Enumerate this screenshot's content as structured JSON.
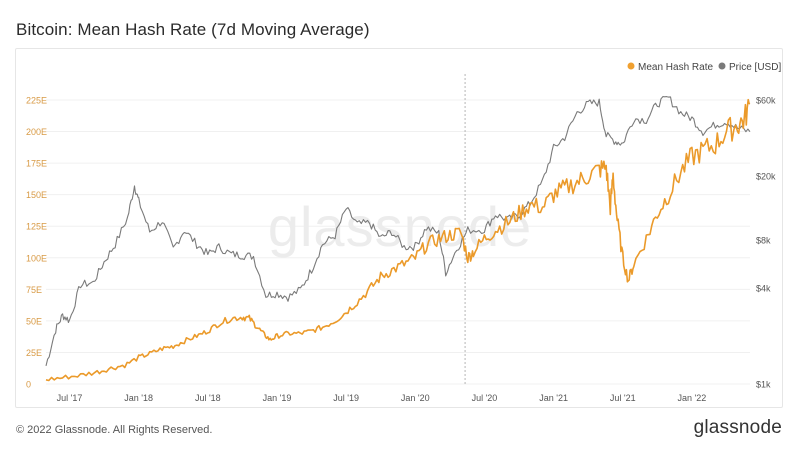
{
  "page": {
    "title": "Bitcoin: Mean Hash Rate (7d Moving Average)",
    "copyright": "© 2022 Glassnode. All Rights Reserved.",
    "brand": "glassnode",
    "watermark": "glassnode"
  },
  "colors": {
    "hash": "#f0a030",
    "hash_line": "#eb9a2a",
    "price": "#7a7a7a",
    "grid": "#f0f0f0",
    "axis_left": "#d89a45",
    "axis_right": "#555555"
  },
  "chart_data": {
    "type": "line",
    "title": "Bitcoin: Mean Hash Rate (7d Moving Average)",
    "legend": [
      "Mean Hash Rate",
      "Price [USD]"
    ],
    "legend_position": "top-right",
    "x_range": [
      2017.33,
      2022.42
    ],
    "x_ticks": [
      {
        "label": "Jul '17",
        "value": 2017.5
      },
      {
        "label": "Jan '18",
        "value": 2018.0
      },
      {
        "label": "Jul '18",
        "value": 2018.5
      },
      {
        "label": "Jan '19",
        "value": 2019.0
      },
      {
        "label": "Jul '19",
        "value": 2019.5
      },
      {
        "label": "Jan '20",
        "value": 2020.0
      },
      {
        "label": "Jul '20",
        "value": 2020.5
      },
      {
        "label": "Jan '21",
        "value": 2021.0
      },
      {
        "label": "Jul '21",
        "value": 2021.5
      },
      {
        "label": "Jan '22",
        "value": 2022.0
      }
    ],
    "y_left": {
      "label": "Mean Hash Rate",
      "range": [
        0,
        225
      ],
      "ticks": [
        "0",
        "25E",
        "50E",
        "75E",
        "100E",
        "125E",
        "150E",
        "175E",
        "200E",
        "225E"
      ],
      "tick_values": [
        0,
        25,
        50,
        75,
        100,
        125,
        150,
        175,
        200,
        225
      ]
    },
    "y_right": {
      "label": "Price [USD]",
      "scale": "log",
      "range": [
        1000,
        60000
      ],
      "ticks": [
        {
          "label": "$1k",
          "value": 1000
        },
        {
          "label": "$4k",
          "value": 4000
        },
        {
          "label": "$8k",
          "value": 8000
        },
        {
          "label": "$20k",
          "value": 20000
        },
        {
          "label": "$60k",
          "value": 60000
        }
      ]
    },
    "halving_marker": 2020.36,
    "series": [
      {
        "name": "Mean Hash Rate",
        "unit": "EH/s",
        "axis": "left",
        "points": [
          [
            2017.33,
            3.5
          ],
          [
            2017.45,
            5
          ],
          [
            2017.58,
            7
          ],
          [
            2017.7,
            9.5
          ],
          [
            2017.8,
            12.5
          ],
          [
            2017.9,
            15
          ],
          [
            2018.0,
            21
          ],
          [
            2018.08,
            24
          ],
          [
            2018.17,
            28
          ],
          [
            2018.25,
            30
          ],
          [
            2018.33,
            34
          ],
          [
            2018.42,
            38
          ],
          [
            2018.5,
            42
          ],
          [
            2018.58,
            48
          ],
          [
            2018.67,
            52
          ],
          [
            2018.75,
            53
          ],
          [
            2018.8,
            52
          ],
          [
            2018.85,
            46
          ],
          [
            2018.9,
            40
          ],
          [
            2018.95,
            35
          ],
          [
            2019.0,
            38
          ],
          [
            2019.08,
            40
          ],
          [
            2019.17,
            40
          ],
          [
            2019.25,
            42
          ],
          [
            2019.33,
            45
          ],
          [
            2019.42,
            50
          ],
          [
            2019.5,
            57
          ],
          [
            2019.58,
            65
          ],
          [
            2019.67,
            75
          ],
          [
            2019.75,
            85
          ],
          [
            2019.83,
            90
          ],
          [
            2019.92,
            95
          ],
          [
            2020.0,
            100
          ],
          [
            2020.08,
            110
          ],
          [
            2020.17,
            115
          ],
          [
            2020.25,
            118
          ],
          [
            2020.33,
            120
          ],
          [
            2020.38,
            100
          ],
          [
            2020.42,
            105
          ],
          [
            2020.5,
            115
          ],
          [
            2020.58,
            122
          ],
          [
            2020.67,
            128
          ],
          [
            2020.75,
            135
          ],
          [
            2020.83,
            142
          ],
          [
            2020.92,
            140
          ],
          [
            2021.0,
            150
          ],
          [
            2021.08,
            155
          ],
          [
            2021.17,
            160
          ],
          [
            2021.25,
            165
          ],
          [
            2021.33,
            170
          ],
          [
            2021.38,
            172
          ],
          [
            2021.41,
            140
          ],
          [
            2021.43,
            165
          ],
          [
            2021.46,
            130
          ],
          [
            2021.5,
            100
          ],
          [
            2021.54,
            82
          ],
          [
            2021.58,
            95
          ],
          [
            2021.67,
            115
          ],
          [
            2021.75,
            135
          ],
          [
            2021.83,
            150
          ],
          [
            2021.92,
            168
          ],
          [
            2022.0,
            180
          ],
          [
            2022.08,
            185
          ],
          [
            2022.17,
            190
          ],
          [
            2022.25,
            200
          ],
          [
            2022.33,
            205
          ],
          [
            2022.38,
            210
          ],
          [
            2022.42,
            222
          ]
        ]
      },
      {
        "name": "Price [USD]",
        "unit": "USD",
        "axis": "right",
        "points": [
          [
            2017.33,
            1300
          ],
          [
            2017.4,
            2200
          ],
          [
            2017.45,
            2700
          ],
          [
            2017.5,
            2500
          ],
          [
            2017.58,
            4200
          ],
          [
            2017.67,
            4300
          ],
          [
            2017.75,
            5800
          ],
          [
            2017.83,
            7500
          ],
          [
            2017.92,
            11000
          ],
          [
            2017.97,
            17500
          ],
          [
            2018.0,
            14000
          ],
          [
            2018.08,
            9000
          ],
          [
            2018.17,
            10500
          ],
          [
            2018.25,
            7000
          ],
          [
            2018.33,
            9200
          ],
          [
            2018.42,
            7500
          ],
          [
            2018.5,
            6500
          ],
          [
            2018.58,
            7200
          ],
          [
            2018.67,
            6500
          ],
          [
            2018.75,
            6400
          ],
          [
            2018.83,
            6300
          ],
          [
            2018.92,
            3600
          ],
          [
            2019.0,
            3700
          ],
          [
            2019.08,
            3500
          ],
          [
            2019.17,
            3900
          ],
          [
            2019.25,
            5200
          ],
          [
            2019.33,
            7500
          ],
          [
            2019.42,
            8500
          ],
          [
            2019.5,
            12500
          ],
          [
            2019.58,
            10000
          ],
          [
            2019.67,
            10200
          ],
          [
            2019.75,
            8200
          ],
          [
            2019.83,
            9000
          ],
          [
            2019.92,
            7200
          ],
          [
            2020.0,
            7300
          ],
          [
            2020.08,
            9500
          ],
          [
            2020.17,
            8800
          ],
          [
            2020.22,
            5000
          ],
          [
            2020.3,
            7000
          ],
          [
            2020.38,
            9200
          ],
          [
            2020.5,
            9300
          ],
          [
            2020.58,
            11500
          ],
          [
            2020.67,
            10700
          ],
          [
            2020.75,
            11500
          ],
          [
            2020.83,
            13500
          ],
          [
            2020.92,
            18500
          ],
          [
            2021.0,
            30000
          ],
          [
            2021.08,
            35000
          ],
          [
            2021.17,
            50000
          ],
          [
            2021.25,
            57000
          ],
          [
            2021.33,
            58000
          ],
          [
            2021.38,
            36000
          ],
          [
            2021.45,
            33000
          ],
          [
            2021.5,
            32000
          ],
          [
            2021.58,
            46000
          ],
          [
            2021.67,
            45000
          ],
          [
            2021.75,
            57000
          ],
          [
            2021.83,
            62000
          ],
          [
            2021.92,
            50000
          ],
          [
            2022.0,
            46000
          ],
          [
            2022.08,
            38000
          ],
          [
            2022.17,
            42000
          ],
          [
            2022.25,
            44000
          ],
          [
            2022.33,
            40000
          ],
          [
            2022.42,
            38000
          ]
        ]
      }
    ]
  }
}
